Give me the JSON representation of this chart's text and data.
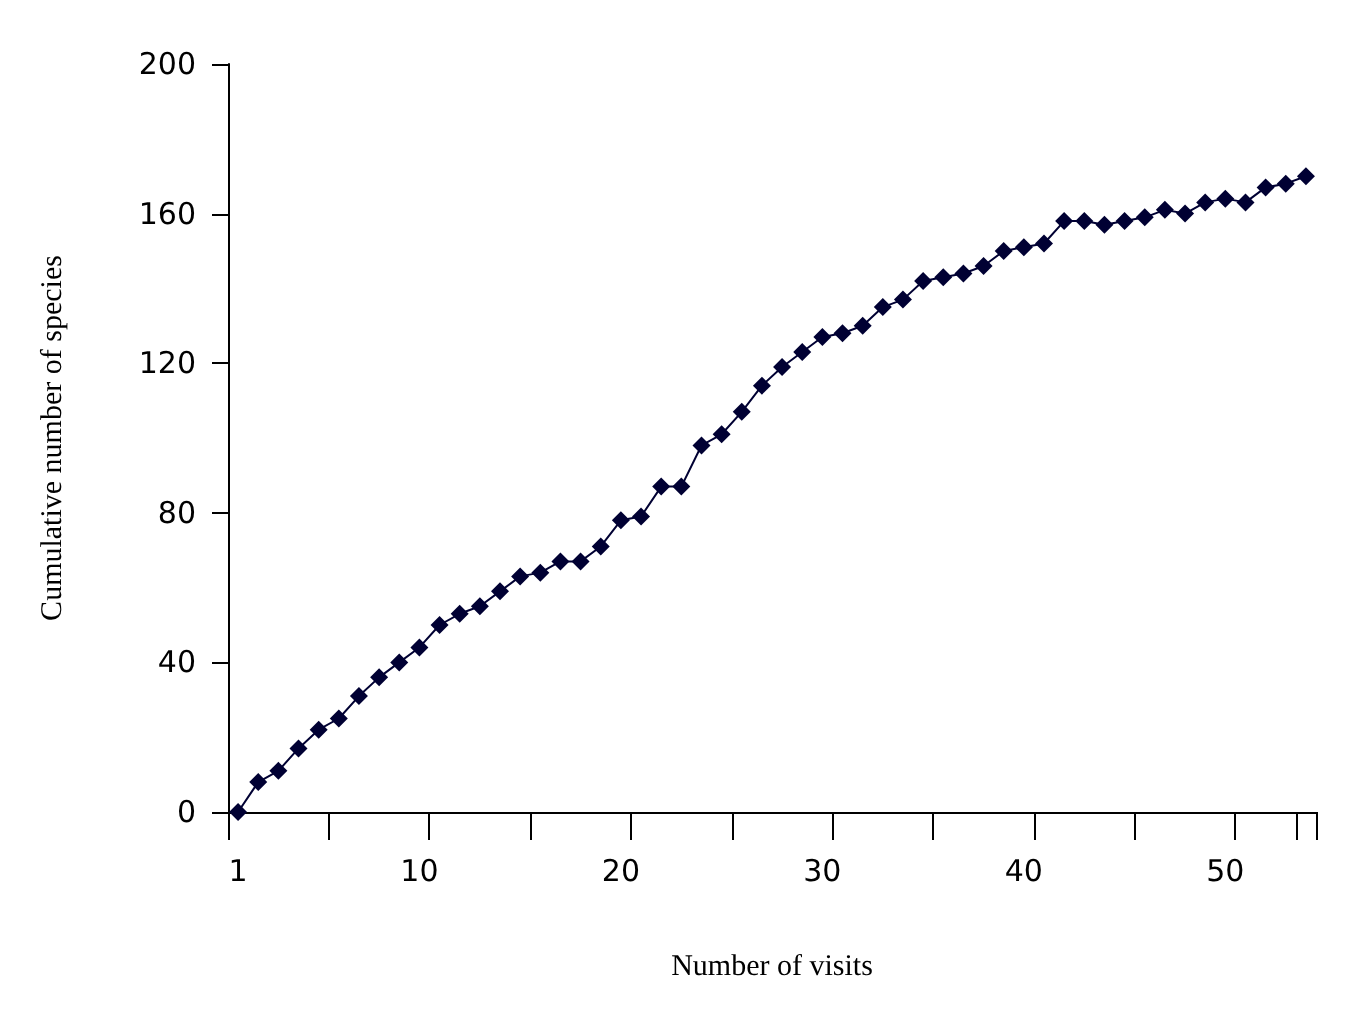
{
  "chart_data": {
    "type": "line",
    "xlabel": "Number of visits",
    "ylabel": "Cumulative number of species",
    "categories": [
      "1",
      null,
      null,
      null,
      null,
      null,
      null,
      null,
      null,
      "10",
      null,
      null,
      null,
      null,
      null,
      null,
      null,
      null,
      null,
      "20",
      null,
      null,
      null,
      null,
      null,
      null,
      null,
      null,
      null,
      "30",
      null,
      null,
      null,
      null,
      null,
      null,
      null,
      null,
      null,
      "40",
      null,
      null,
      null,
      null,
      null,
      null,
      null,
      null,
      null,
      "50",
      null,
      null,
      null,
      null
    ],
    "series": [
      {
        "color": "#000033",
        "values": [
          0,
          8,
          11,
          17,
          22,
          25,
          31,
          36,
          40,
          44,
          50,
          53,
          55,
          59,
          63,
          64,
          67,
          67,
          71,
          78,
          79,
          87,
          87,
          98,
          101,
          107,
          114,
          119,
          123,
          127,
          128,
          130,
          135,
          137,
          142,
          143,
          144,
          146,
          150,
          151,
          152,
          158,
          158,
          157,
          158,
          159,
          161,
          160,
          163,
          164,
          163,
          167,
          168,
          170
        ]
      }
    ],
    "ylim": [
      0,
      200
    ],
    "yticks": [
      0,
      40,
      80,
      120,
      160,
      200
    ],
    "grid": false,
    "marker": "diamond",
    "line_style": "solid"
  }
}
